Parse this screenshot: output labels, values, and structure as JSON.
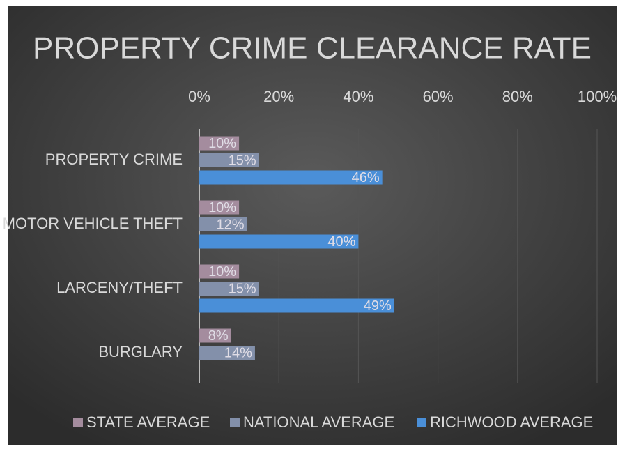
{
  "chart_data": {
    "type": "barh",
    "title": "PROPERTY CRIME CLEARANCE RATE",
    "categories": [
      "PROPERTY CRIME",
      "MOTOR VEHICLE THEFT",
      "LARCENY/THEFT",
      "BURGLARY"
    ],
    "series": [
      {
        "name": "STATE AVERAGE",
        "color": "#a48c9e",
        "values": [
          10,
          10,
          10,
          8
        ],
        "value_labels": [
          "10%",
          "10%",
          "10%",
          "8%"
        ]
      },
      {
        "name": "NATIONAL AVERAGE",
        "color": "#8390aa",
        "values": [
          15,
          12,
          15,
          14
        ],
        "value_labels": [
          "15%",
          "12%",
          "15%",
          "14%"
        ]
      },
      {
        "name": "RICHWOOD AVERAGE",
        "color": "#4a8fd8",
        "values": [
          46,
          40,
          49,
          null
        ],
        "value_labels": [
          "46%",
          "40%",
          "49%",
          null
        ]
      }
    ],
    "xlim": [
      0,
      100
    ],
    "xticks": [
      {
        "value": 0,
        "label": "0%"
      },
      {
        "value": 20,
        "label": "20%"
      },
      {
        "value": 40,
        "label": "40%"
      },
      {
        "value": 60,
        "label": "60%"
      },
      {
        "value": 80,
        "label": "80%"
      },
      {
        "value": 100,
        "label": "100%"
      }
    ],
    "grid": true,
    "legend": "bottom"
  }
}
